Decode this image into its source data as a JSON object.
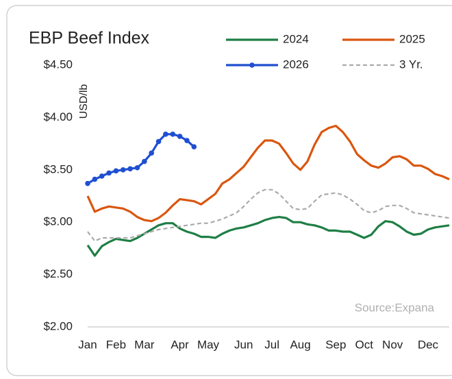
{
  "chart_data": {
    "type": "line",
    "title": "EBP Beef Index",
    "y_label": "USD/lb",
    "source": "Source:Expana",
    "categories": [
      "Jan",
      null,
      null,
      null,
      "Feb",
      null,
      null,
      null,
      "Mar",
      null,
      null,
      null,
      null,
      "Apr",
      null,
      null,
      null,
      "May",
      null,
      null,
      null,
      null,
      "Jun",
      null,
      null,
      null,
      "Jul",
      null,
      null,
      null,
      "Aug",
      null,
      null,
      null,
      null,
      "Sep",
      null,
      null,
      null,
      "Oct",
      null,
      null,
      null,
      "Nov",
      null,
      null,
      null,
      null,
      "Dec",
      null,
      null,
      null
    ],
    "series": [
      {
        "name": "2024",
        "color": "#1e7e45",
        "values": [
          2.78,
          2.68,
          2.77,
          2.81,
          2.84,
          2.83,
          2.82,
          2.85,
          2.89,
          2.93,
          2.97,
          2.99,
          2.99,
          2.94,
          2.91,
          2.89,
          2.86,
          2.86,
          2.85,
          2.89,
          2.92,
          2.94,
          2.95,
          2.97,
          2.99,
          3.02,
          3.04,
          3.05,
          3.04,
          3.0,
          3.0,
          2.98,
          2.97,
          2.95,
          2.92,
          2.92,
          2.91,
          2.91,
          2.88,
          2.85,
          2.88,
          2.96,
          3.01,
          3.0,
          2.96,
          2.91,
          2.88,
          2.89,
          2.93,
          2.95,
          2.96,
          2.97
        ]
      },
      {
        "name": "2025",
        "color": "#d9560f",
        "values": [
          3.25,
          3.1,
          3.13,
          3.15,
          3.14,
          3.13,
          3.1,
          3.05,
          3.02,
          3.01,
          3.04,
          3.09,
          3.16,
          3.22,
          3.21,
          3.2,
          3.17,
          3.22,
          3.27,
          3.37,
          3.41,
          3.47,
          3.53,
          3.62,
          3.71,
          3.78,
          3.78,
          3.75,
          3.66,
          3.56,
          3.5,
          3.58,
          3.74,
          3.86,
          3.9,
          3.92,
          3.86,
          3.77,
          3.65,
          3.59,
          3.54,
          3.52,
          3.56,
          3.62,
          3.63,
          3.6,
          3.54,
          3.54,
          3.51,
          3.46,
          3.44,
          3.41
        ]
      },
      {
        "name": "2026",
        "color": "#1f4fd1",
        "markers": true,
        "values": [
          3.37,
          3.41,
          3.44,
          3.47,
          3.49,
          3.5,
          3.51,
          3.52,
          3.58,
          3.66,
          3.77,
          3.84,
          3.84,
          3.82,
          3.78,
          3.72,
          null,
          null,
          null,
          null,
          null,
          null,
          null,
          null,
          null,
          null,
          null,
          null,
          null,
          null,
          null,
          null,
          null,
          null,
          null,
          null,
          null,
          null,
          null,
          null,
          null,
          null,
          null,
          null,
          null,
          null,
          null,
          null,
          null,
          null,
          null,
          null
        ]
      },
      {
        "name": "3 Yr.",
        "color": "#aaaaaa",
        "dashed": true,
        "values": [
          2.91,
          2.82,
          2.85,
          2.85,
          2.85,
          2.85,
          2.85,
          2.87,
          2.89,
          2.91,
          2.93,
          2.94,
          2.95,
          2.96,
          2.97,
          2.98,
          2.99,
          2.99,
          3.01,
          3.03,
          3.06,
          3.09,
          3.15,
          3.22,
          3.28,
          3.31,
          3.31,
          3.27,
          3.2,
          3.13,
          3.12,
          3.13,
          3.2,
          3.26,
          3.27,
          3.28,
          3.26,
          3.22,
          3.17,
          3.11,
          3.09,
          3.11,
          3.15,
          3.16,
          3.16,
          3.13,
          3.09,
          3.08,
          3.07,
          3.06,
          3.05,
          3.04
        ]
      }
    ],
    "ylim": [
      2.0,
      4.5
    ],
    "yticks": [
      {
        "value": 2.0,
        "label": "$2.00"
      },
      {
        "value": 2.5,
        "label": "$2.50"
      },
      {
        "value": 3.0,
        "label": "$3.00"
      },
      {
        "value": 3.5,
        "label": "$3.50"
      },
      {
        "value": 4.0,
        "label": "$4.00"
      },
      {
        "value": 4.5,
        "label": "$4.50"
      }
    ],
    "grid": false,
    "legend": "top"
  }
}
